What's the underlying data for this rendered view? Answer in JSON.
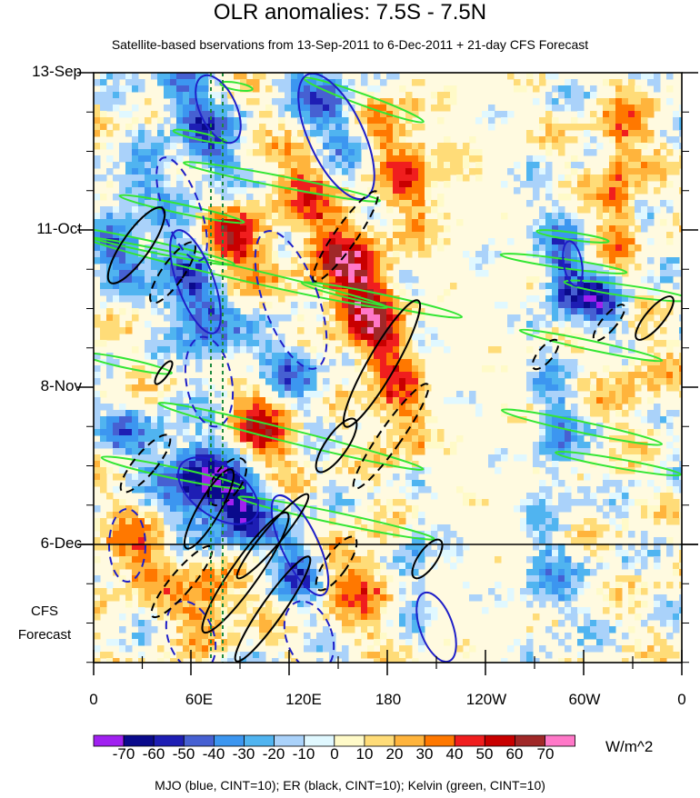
{
  "title": "OLR anomalies: 7.5S - 7.5N",
  "subtitle": "Satellite-based bservations from 13-Sep-2011 to 6-Dec-2011 + 21-day CFS Forecast",
  "y_labels": [
    "13-Sep",
    "11-Oct",
    "8-Nov",
    "6-Dec"
  ],
  "x_labels": [
    "0",
    "60E",
    "120E",
    "180",
    "120W",
    "60W",
    "0"
  ],
  "cfs_label_line1": "CFS",
  "cfs_label_line2": "Forecast",
  "units": "W/m^2",
  "footer": "MJO (blue, CINT=10); ER (black, CINT=10); Kelvin (green, CINT=10)",
  "colorbar": {
    "labels": [
      "-70",
      "-60",
      "-50",
      "-40",
      "-30",
      "-20",
      "-10",
      "0",
      "10",
      "20",
      "30",
      "40",
      "50",
      "60",
      "70"
    ],
    "colors": [
      "#a020f0",
      "#0a0a8c",
      "#1e1eb4",
      "#4660d2",
      "#3c96f0",
      "#50b4f0",
      "#aad2fa",
      "#e0f8ff",
      "#fffac8",
      "#ffdc78",
      "#ffb43c",
      "#ff7800",
      "#f01e1e",
      "#c80000",
      "#a02828",
      "#ff78c8"
    ]
  },
  "chart_data": {
    "type": "heatmap",
    "title": "OLR anomalies: 7.5S - 7.5N",
    "subtitle": "Satellite-based bservations from 13-Sep-2011 to 6-Dec-2011 + 21-day CFS Forecast",
    "x_axis": {
      "labels": [
        "0",
        "60E",
        "120E",
        "180",
        "120W",
        "60W",
        "0"
      ],
      "range_deg_east": [
        0,
        360
      ]
    },
    "y_axis": {
      "labels": [
        "13-Sep",
        "11-Oct",
        "8-Nov",
        "6-Dec"
      ],
      "start": "2011-09-13",
      "observed_end": "2011-12-06",
      "forecast_days": 21,
      "direction": "time increases downward"
    },
    "colorbar": {
      "units": "W/m^2",
      "levels": [
        -70,
        -60,
        -50,
        -40,
        -30,
        -20,
        -10,
        0,
        10,
        20,
        30,
        40,
        50,
        60,
        70
      ]
    },
    "overlays": [
      {
        "name": "MJO",
        "color": "blue",
        "cint": 10
      },
      {
        "name": "ER",
        "color": "black",
        "cint": 10
      },
      {
        "name": "Kelvin",
        "color": "green",
        "cint": 10
      }
    ],
    "forecast_boundary": "6-Dec",
    "vertical_dashed_lines_lon": [
      "~72E",
      "~80E"
    ]
  }
}
